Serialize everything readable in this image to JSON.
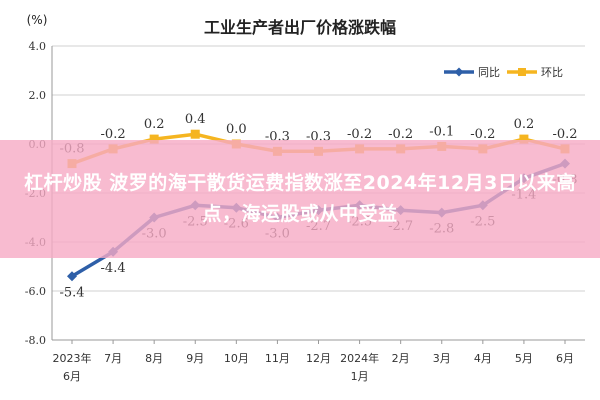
{
  "chart_data": {
    "type": "line",
    "title": "工业生产者出厂价格涨跌幅",
    "ylabel": "(%)",
    "xlabel": "",
    "ylim": [
      -8.0,
      4.0
    ],
    "yticks": [
      "4.0",
      "2.0",
      "0.0",
      "-2.0",
      "-4.0",
      "-6.0",
      "-8.0"
    ],
    "categories": [
      "2023年6月",
      "7月",
      "8月",
      "9月",
      "10月",
      "11月",
      "12月",
      "2024年1月",
      "2月",
      "3月",
      "4月",
      "5月",
      "6月"
    ],
    "series": [
      {
        "name": "同比",
        "color": "#2e5fa8",
        "values": [
          -5.4,
          -4.4,
          -3.0,
          -2.5,
          -2.6,
          -3.0,
          -2.7,
          -2.5,
          -2.7,
          -2.8,
          -2.5,
          -1.4,
          -0.8
        ]
      },
      {
        "name": "环比",
        "color": "#f5b520",
        "values": [
          -0.8,
          -0.2,
          0.2,
          0.4,
          0.0,
          -0.3,
          -0.3,
          -0.2,
          -0.2,
          -0.1,
          -0.2,
          0.2,
          -0.2
        ]
      }
    ],
    "grid": true,
    "legend_position": "top-right"
  },
  "banner": {
    "text": "杠杆炒股 波罗的海干散货运费指数涨至2024年12月3日以来高点，海运股或从中受益"
  }
}
